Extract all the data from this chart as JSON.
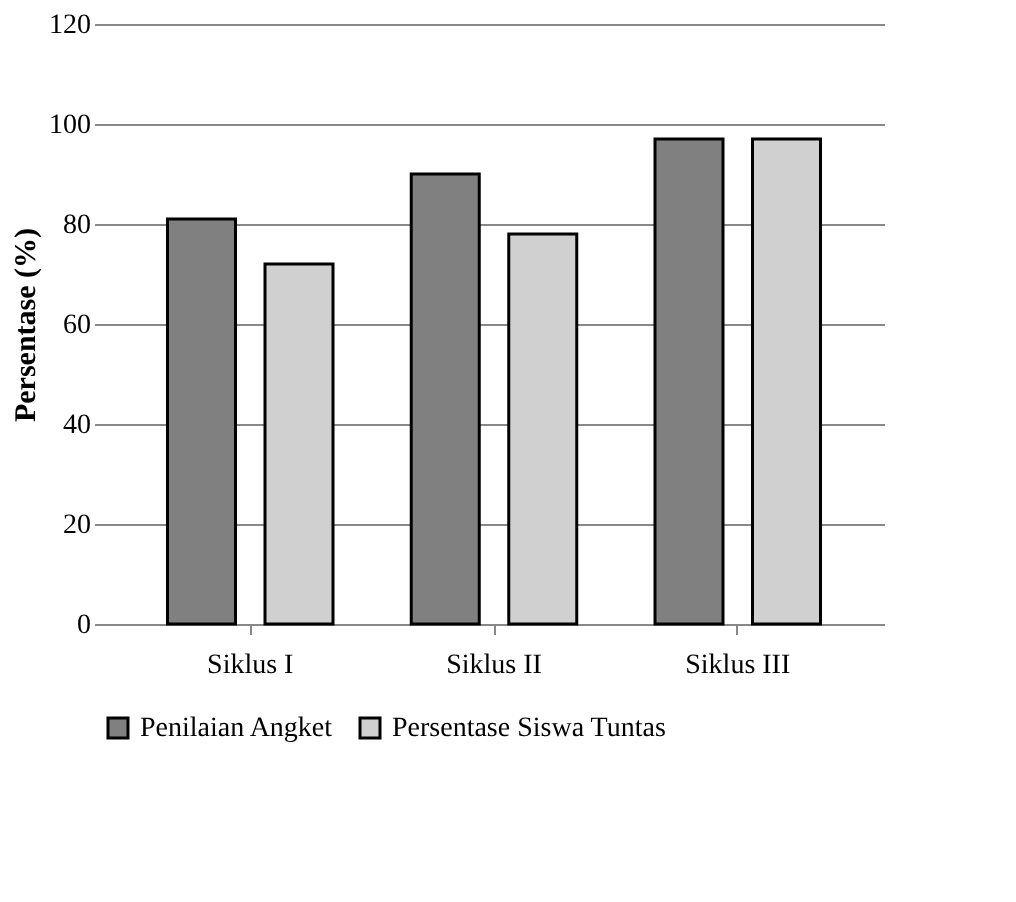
{
  "chart_data": {
    "type": "bar",
    "ylabel": "Persentase (%)",
    "categories": [
      "Siklus I",
      "Siklus II",
      "Siklus III"
    ],
    "series": [
      {
        "name": "Penilaian Angket",
        "color": "#808080",
        "values": [
          81,
          90,
          97
        ]
      },
      {
        "name": "Persentase Siswa Tuntas",
        "color": "#d0d0d0",
        "values": [
          72,
          78,
          97
        ]
      }
    ],
    "ylim": [
      0,
      120
    ],
    "yticks": [
      0,
      20,
      40,
      60,
      80,
      100,
      120
    ],
    "grid": "y",
    "legend": "bottom"
  }
}
